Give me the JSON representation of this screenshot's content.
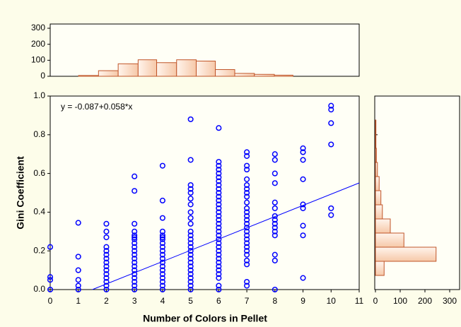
{
  "chart_data": [
    {
      "type": "scatter",
      "color": "#0000ff",
      "x_label": "Number of Colors in Pellet",
      "y_label": "Gini Coefficient",
      "annotation": "y = -0.087+0.058*x",
      "fit": {
        "intercept": -0.087,
        "slope": 0.058
      },
      "xlim": [
        0,
        11
      ],
      "xticks": [
        0,
        1,
        2,
        3,
        4,
        5,
        6,
        7,
        8,
        9,
        10,
        11
      ],
      "ylim": [
        0,
        1
      ],
      "yticks": [
        {
          "value": 0,
          "label": "0.0"
        },
        {
          "value": 0.2,
          "label": "0.2"
        },
        {
          "value": 0.4,
          "label": "0.4"
        },
        {
          "value": 0.6,
          "label": "0.6"
        },
        {
          "value": 0.8,
          "label": "0.8"
        },
        {
          "value": 1,
          "label": "1.0"
        }
      ],
      "groups": [
        {
          "x": 0,
          "y": [
            0.22,
            0.065,
            0.05,
            0.0
          ]
        },
        {
          "x": 1,
          "y": [
            0.345,
            0.17,
            0.1,
            0.05,
            0.02,
            0.0
          ]
        },
        {
          "x": 2,
          "y": [
            0.34,
            0.3,
            0.27,
            0.22,
            0.2,
            0.18,
            0.16,
            0.14,
            0.12,
            0.1,
            0.08,
            0.06,
            0.04,
            0.02,
            0.0
          ]
        },
        {
          "x": 3,
          "y": [
            0.585,
            0.51,
            0.34,
            0.3,
            0.28,
            0.27,
            0.26,
            0.24,
            0.22,
            0.2,
            0.18,
            0.16,
            0.14,
            0.12,
            0.1,
            0.08,
            0.06,
            0.04,
            0.02,
            0.0
          ]
        },
        {
          "x": 4,
          "y": [
            0.64,
            0.46,
            0.37,
            0.3,
            0.28,
            0.27,
            0.26,
            0.24,
            0.22,
            0.2,
            0.18,
            0.16,
            0.14,
            0.12,
            0.1,
            0.08,
            0.06,
            0.04,
            0.02,
            0.0
          ]
        },
        {
          "x": 5,
          "y": [
            0.88,
            0.67,
            0.54,
            0.52,
            0.5,
            0.47,
            0.44,
            0.4,
            0.37,
            0.34,
            0.3,
            0.28,
            0.26,
            0.24,
            0.22,
            0.2,
            0.18,
            0.16,
            0.14,
            0.12,
            0.1,
            0.08,
            0.06,
            0.04,
            0.02,
            0.0
          ]
        },
        {
          "x": 6,
          "y": [
            0.835,
            0.66,
            0.64,
            0.62,
            0.6,
            0.58,
            0.56,
            0.54,
            0.52,
            0.5,
            0.48,
            0.46,
            0.44,
            0.42,
            0.4,
            0.38,
            0.36,
            0.34,
            0.32,
            0.3,
            0.28,
            0.26,
            0.24,
            0.22,
            0.2,
            0.18,
            0.16,
            0.14,
            0.12,
            0.1,
            0.08,
            0.06,
            0.02,
            0.0
          ]
        },
        {
          "x": 7,
          "y": [
            0.71,
            0.69,
            0.64,
            0.62,
            0.57,
            0.54,
            0.52,
            0.5,
            0.48,
            0.45,
            0.42,
            0.4,
            0.38,
            0.36,
            0.34,
            0.32,
            0.3,
            0.28,
            0.26,
            0.24,
            0.22,
            0.2,
            0.18,
            0.15,
            0.13,
            0.04,
            0.02
          ]
        },
        {
          "x": 8,
          "y": [
            0.7,
            0.67,
            0.6,
            0.55,
            0.45,
            0.42,
            0.38,
            0.36,
            0.34,
            0.32,
            0.3,
            0.28,
            0.18,
            0.15,
            0.0
          ]
        },
        {
          "x": 9,
          "y": [
            0.73,
            0.71,
            0.67,
            0.57,
            0.44,
            0.42,
            0.33,
            0.28,
            0.06
          ]
        },
        {
          "x": 10,
          "y": [
            0.95,
            0.93,
            0.86,
            0.75,
            0.42,
            0.385
          ]
        }
      ]
    },
    {
      "type": "histogram",
      "orientation": "vertical",
      "color": "#fbe0cc",
      "edge_color": "#c0562a",
      "bins": [
        1.01,
        1.72,
        2.42,
        3.13,
        3.79,
        4.5,
        5.2,
        5.88,
        6.57,
        7.27,
        7.98,
        8.64
      ],
      "counts": [
        5,
        35,
        78,
        103,
        85,
        103,
        95,
        42,
        18,
        12,
        7
      ],
      "ylim": [
        0,
        300
      ],
      "yticks": [
        0,
        100,
        200,
        300
      ]
    },
    {
      "type": "histogram",
      "orientation": "horizontal",
      "color": "#fbe0cc",
      "edge_color": "#c0562a",
      "bins": [
        0.073,
        0.146,
        0.219,
        0.292,
        0.365,
        0.438,
        0.511,
        0.584,
        0.657,
        0.73,
        0.803,
        0.876
      ],
      "counts": [
        35,
        245,
        115,
        60,
        28,
        22,
        15,
        8,
        4,
        2,
        2
      ],
      "xlim": [
        0,
        300
      ],
      "xticks": [
        0,
        100,
        200,
        300
      ]
    }
  ]
}
